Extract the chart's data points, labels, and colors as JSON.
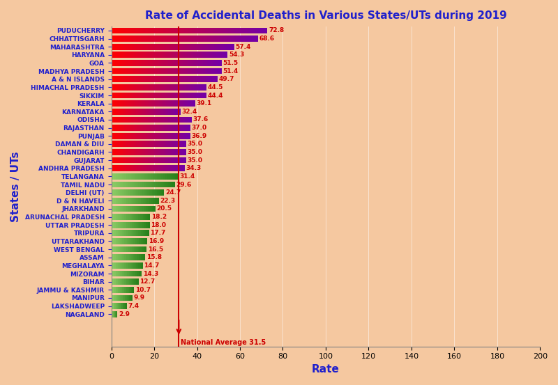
{
  "title": "Rate of Accidental Deaths in Various States/UTs during 2019",
  "xlabel": "Rate",
  "ylabel": "States / UTs",
  "national_average": 31.5,
  "national_avg_label": "National Average 31.5",
  "xlim": [
    0,
    200
  ],
  "xticks": [
    0,
    20,
    40,
    60,
    80,
    100,
    120,
    140,
    160,
    180,
    200
  ],
  "states": [
    "PUDUCHERRY",
    "CHHATTISGARH",
    "MAHARASHTRA",
    "HARYANA",
    "GOA",
    "MADHYA PRADESH",
    "A & N ISLANDS",
    "HIMACHAL PRADESH",
    "SIKKIM",
    "KERALA",
    "KARNATAKA",
    "ODISHA",
    "RAJASTHAN",
    "PUNJAB",
    "DAMAN & DIU",
    "CHANDIGARH",
    "GUJARAT",
    "ANDHRA PRADESH",
    "TELANGANA",
    "TAMIL NADU",
    "DELHI (UT)",
    "D & N HAVELI",
    "JHARKHAND",
    "ARUNACHAL PRADESH",
    "UTTAR PRADESH",
    "TRIPURA",
    "UTTARAKHAND",
    "WEST BENGAL",
    "ASSAM",
    "MEGHALAYA",
    "MIZORAM",
    "BIHAR",
    "JAMMU & KASHMIR",
    "MANIPUR",
    "LAKSHADWEEP",
    "NAGALAND"
  ],
  "values": [
    72.8,
    68.6,
    57.4,
    54.3,
    51.5,
    51.4,
    49.7,
    44.5,
    44.4,
    39.1,
    32.4,
    37.6,
    37.0,
    36.9,
    35.0,
    35.0,
    35.0,
    34.3,
    31.4,
    29.6,
    24.7,
    22.3,
    20.5,
    18.2,
    18.0,
    17.7,
    16.9,
    16.5,
    15.8,
    14.7,
    14.3,
    12.7,
    10.7,
    9.9,
    7.4,
    2.9
  ],
  "background_color": "#f5c8a0",
  "title_color": "#2020cc",
  "ylabel_color": "#2020cc",
  "xlabel_color": "#2020cc",
  "avg_line_color": "#cc0000",
  "avg_label_color": "#cc0000",
  "value_label_color": "#cc0000",
  "state_label_color": "#2020cc",
  "axis_label_fontsize": 11,
  "title_fontsize": 11,
  "bar_label_fontsize": 6.5,
  "state_label_fontsize": 6.5,
  "threshold": 31.5
}
